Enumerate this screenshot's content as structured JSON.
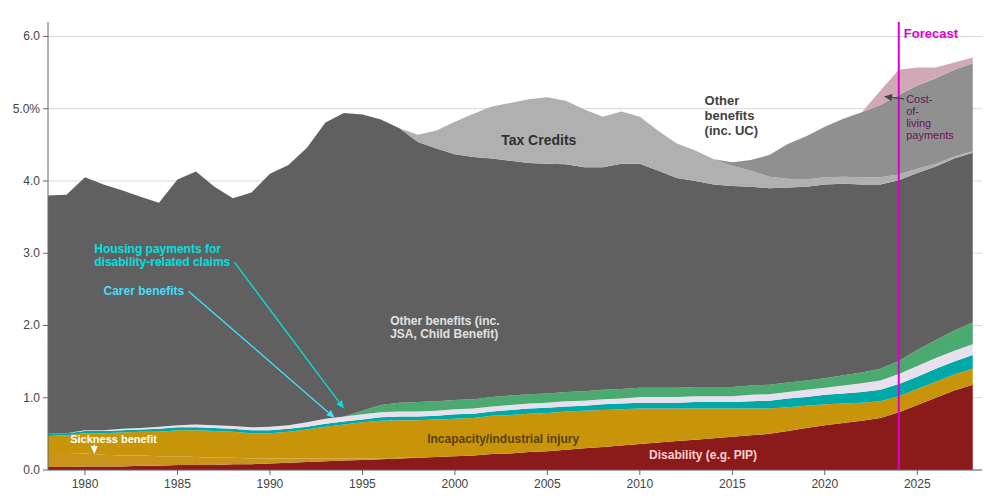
{
  "chart_data": {
    "type": "area",
    "stacked": true,
    "grid": true,
    "xlim": [
      1978,
      2028.5
    ],
    "xticks": [
      1980,
      1985,
      1990,
      1995,
      2000,
      2005,
      2010,
      2015,
      2020,
      2025
    ],
    "ylim": [
      0,
      6.2
    ],
    "yticks": [
      {
        "value": 0.0,
        "label": "0.0"
      },
      {
        "value": 1.0,
        "label": "1.0"
      },
      {
        "value": 2.0,
        "label": "2.0"
      },
      {
        "value": 3.0,
        "label": "3.0"
      },
      {
        "value": 4.0,
        "label": "4.0"
      },
      {
        "value": 5.0,
        "label": "5.0%"
      },
      {
        "value": 6.0,
        "label": "6.0"
      }
    ],
    "x": [
      1978,
      1979,
      1980,
      1981,
      1982,
      1983,
      1984,
      1985,
      1986,
      1987,
      1988,
      1989,
      1990,
      1991,
      1992,
      1993,
      1994,
      1995,
      1996,
      1997,
      1998,
      1999,
      2000,
      2001,
      2002,
      2003,
      2004,
      2005,
      2006,
      2007,
      2008,
      2009,
      2010,
      2011,
      2012,
      2013,
      2014,
      2015,
      2016,
      2017,
      2018,
      2019,
      2020,
      2021,
      2022,
      2023,
      2024,
      2025,
      2026,
      2027,
      2028
    ],
    "series": [
      {
        "color": "#8B1A1A",
        "values": [
          0.04,
          0.04,
          0.05,
          0.05,
          0.05,
          0.06,
          0.06,
          0.07,
          0.07,
          0.07,
          0.08,
          0.08,
          0.09,
          0.1,
          0.11,
          0.12,
          0.13,
          0.14,
          0.15,
          0.16,
          0.17,
          0.18,
          0.19,
          0.2,
          0.22,
          0.23,
          0.25,
          0.26,
          0.28,
          0.3,
          0.32,
          0.34,
          0.36,
          0.38,
          0.4,
          0.42,
          0.44,
          0.46,
          0.48,
          0.5,
          0.54,
          0.58,
          0.62,
          0.65,
          0.68,
          0.72,
          0.8,
          0.9,
          1.0,
          1.1,
          1.18
        ]
      },
      {
        "color": "#c8951a",
        "values": [
          0.18,
          0.18,
          0.18,
          0.16,
          0.15,
          0.14,
          0.13,
          0.12,
          0.11,
          0.1,
          0.09,
          0.08,
          0.07,
          0.06,
          0.05,
          0.04,
          0.03,
          0.02,
          0.01,
          0.01,
          0.0,
          0.0,
          0.0,
          0.0,
          0.0,
          0.0,
          0.0,
          0.0,
          0.0,
          0.0,
          0.0,
          0.0,
          0.0,
          0.0,
          0.0,
          0.0,
          0.0,
          0.0,
          0.0,
          0.0,
          0.0,
          0.0,
          0.0,
          0.0,
          0.0,
          0.0,
          0.0,
          0.0,
          0.0,
          0.0,
          0.0
        ]
      },
      {
        "color": "#c8950a",
        "values": [
          0.25,
          0.26,
          0.28,
          0.3,
          0.32,
          0.33,
          0.34,
          0.36,
          0.37,
          0.37,
          0.36,
          0.35,
          0.35,
          0.37,
          0.4,
          0.44,
          0.47,
          0.5,
          0.52,
          0.52,
          0.52,
          0.52,
          0.52,
          0.52,
          0.53,
          0.53,
          0.53,
          0.53,
          0.53,
          0.52,
          0.51,
          0.5,
          0.49,
          0.47,
          0.45,
          0.43,
          0.41,
          0.39,
          0.37,
          0.35,
          0.33,
          0.31,
          0.29,
          0.27,
          0.25,
          0.23,
          0.22,
          0.22,
          0.22,
          0.22,
          0.22
        ]
      },
      {
        "color": "#00a8a8",
        "values": [
          0.03,
          0.03,
          0.03,
          0.03,
          0.03,
          0.03,
          0.04,
          0.04,
          0.04,
          0.04,
          0.04,
          0.04,
          0.04,
          0.04,
          0.04,
          0.04,
          0.04,
          0.04,
          0.05,
          0.05,
          0.05,
          0.05,
          0.06,
          0.06,
          0.06,
          0.07,
          0.07,
          0.07,
          0.07,
          0.07,
          0.08,
          0.08,
          0.08,
          0.08,
          0.08,
          0.09,
          0.09,
          0.09,
          0.1,
          0.11,
          0.12,
          0.12,
          0.13,
          0.14,
          0.15,
          0.16,
          0.17,
          0.17,
          0.18,
          0.18,
          0.19
        ]
      },
      {
        "color": "#e8e0ee",
        "values": [
          0.0,
          0.0,
          0.01,
          0.01,
          0.02,
          0.02,
          0.03,
          0.03,
          0.04,
          0.04,
          0.04,
          0.04,
          0.05,
          0.05,
          0.06,
          0.07,
          0.07,
          0.07,
          0.07,
          0.07,
          0.07,
          0.07,
          0.07,
          0.07,
          0.07,
          0.07,
          0.07,
          0.07,
          0.07,
          0.07,
          0.07,
          0.07,
          0.08,
          0.08,
          0.08,
          0.08,
          0.08,
          0.08,
          0.09,
          0.09,
          0.09,
          0.1,
          0.1,
          0.11,
          0.12,
          0.13,
          0.14,
          0.15,
          0.15,
          0.15,
          0.15
        ]
      },
      {
        "color": "#4aaa70",
        "values": [
          0.0,
          0.0,
          0.0,
          0.0,
          0.0,
          0.0,
          0.0,
          0.0,
          0.0,
          0.0,
          0.0,
          0.0,
          0.0,
          0.0,
          0.0,
          0.0,
          0.0,
          0.05,
          0.1,
          0.12,
          0.13,
          0.13,
          0.13,
          0.13,
          0.13,
          0.13,
          0.13,
          0.13,
          0.13,
          0.13,
          0.13,
          0.13,
          0.13,
          0.13,
          0.13,
          0.13,
          0.13,
          0.13,
          0.13,
          0.13,
          0.13,
          0.13,
          0.13,
          0.14,
          0.15,
          0.16,
          0.18,
          0.22,
          0.25,
          0.28,
          0.3
        ]
      },
      {
        "color": "#606060",
        "values": [
          3.3,
          3.3,
          3.5,
          3.4,
          3.3,
          3.2,
          3.1,
          3.4,
          3.5,
          3.3,
          3.15,
          3.25,
          3.5,
          3.6,
          3.8,
          4.1,
          4.2,
          4.1,
          3.95,
          3.8,
          3.6,
          3.5,
          3.4,
          3.35,
          3.3,
          3.25,
          3.2,
          3.18,
          3.15,
          3.1,
          3.08,
          3.12,
          3.1,
          3.0,
          2.9,
          2.85,
          2.8,
          2.78,
          2.75,
          2.72,
          2.7,
          2.68,
          2.68,
          2.65,
          2.6,
          2.55,
          2.5,
          2.45,
          2.4,
          2.38,
          2.35
        ]
      },
      {
        "color": "#b0b0b0",
        "values": [
          0.0,
          0.0,
          0.0,
          0.0,
          0.0,
          0.0,
          0.0,
          0.0,
          0.0,
          0.0,
          0.0,
          0.0,
          0.0,
          0.0,
          0.0,
          0.0,
          0.0,
          0.0,
          0.0,
          0.0,
          0.1,
          0.25,
          0.45,
          0.6,
          0.72,
          0.8,
          0.88,
          0.92,
          0.88,
          0.8,
          0.7,
          0.72,
          0.65,
          0.55,
          0.48,
          0.42,
          0.35,
          0.28,
          0.22,
          0.16,
          0.12,
          0.1,
          0.1,
          0.1,
          0.1,
          0.1,
          0.08,
          0.06,
          0.04,
          0.03,
          0.02
        ]
      },
      {
        "color": "#909090",
        "values": [
          0.0,
          0.0,
          0.0,
          0.0,
          0.0,
          0.0,
          0.0,
          0.0,
          0.0,
          0.0,
          0.0,
          0.0,
          0.0,
          0.0,
          0.0,
          0.0,
          0.0,
          0.0,
          0.0,
          0.0,
          0.0,
          0.0,
          0.0,
          0.0,
          0.0,
          0.0,
          0.0,
          0.0,
          0.0,
          0.0,
          0.0,
          0.0,
          0.0,
          0.0,
          0.0,
          0.0,
          0.0,
          0.05,
          0.15,
          0.3,
          0.48,
          0.6,
          0.7,
          0.8,
          0.9,
          1.0,
          1.1,
          1.15,
          1.18,
          1.2,
          1.22
        ]
      },
      {
        "color": "#d0a8b8",
        "values": [
          0.0,
          0.0,
          0.0,
          0.0,
          0.0,
          0.0,
          0.0,
          0.0,
          0.0,
          0.0,
          0.0,
          0.0,
          0.0,
          0.0,
          0.0,
          0.0,
          0.0,
          0.0,
          0.0,
          0.0,
          0.0,
          0.0,
          0.0,
          0.0,
          0.0,
          0.0,
          0.0,
          0.0,
          0.0,
          0.0,
          0.0,
          0.0,
          0.0,
          0.0,
          0.0,
          0.0,
          0.0,
          0.0,
          0.0,
          0.0,
          0.0,
          0.0,
          0.0,
          0.0,
          0.0,
          0.2,
          0.35,
          0.25,
          0.15,
          0.1,
          0.08
        ]
      }
    ],
    "vlines": [
      {
        "x": 2024,
        "label": "Forecast"
      }
    ],
    "annotations": [
      "Sickness benefit",
      "Incapacity/industrial injury",
      "Disability (e.g. PIP)",
      "Housing payments for\ndisability-related claims",
      "Carer benefits",
      "Other benefits (inc.\nJSA, Child Benefit)",
      "Tax Credits",
      "Other\nbenefits\n(inc. UC)",
      "Cost-\nof-\nliving\npayments"
    ]
  }
}
